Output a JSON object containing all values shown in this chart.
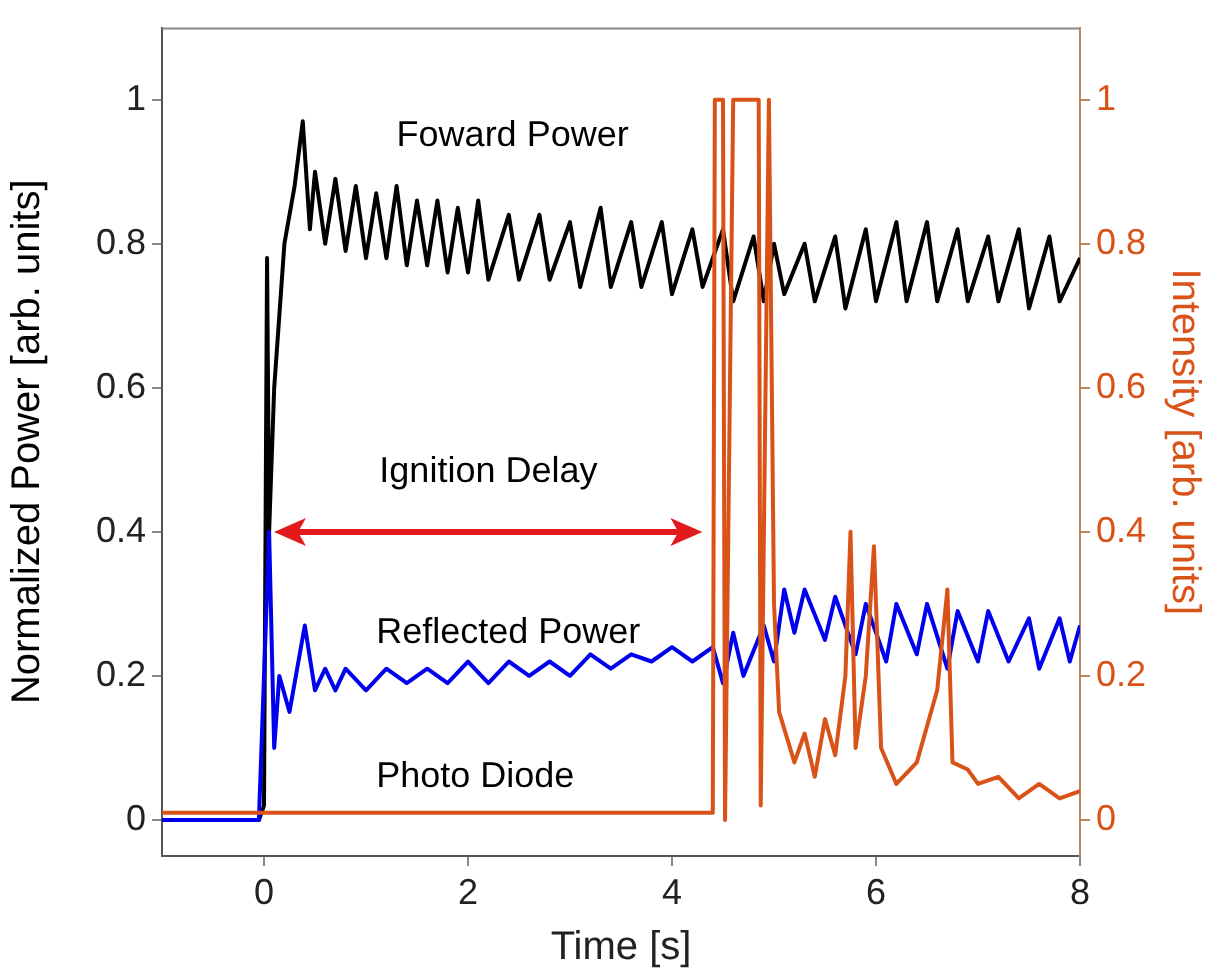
{
  "chart_data": {
    "type": "line",
    "xlabel": "Time [s]",
    "ylabel": "Normalized Power [arb. units]",
    "y2label": "Intensity [arb. units]",
    "xlim": [
      -1,
      8
    ],
    "xticks": [
      0,
      2,
      4,
      6,
      8
    ],
    "ylim": [
      -0.05,
      1.1
    ],
    "yticks": [
      0,
      0.2,
      0.4,
      0.6,
      0.8,
      1
    ],
    "y2lim": [
      -0.05,
      1.1
    ],
    "y2ticks": [
      0,
      0.2,
      0.4,
      0.6,
      0.8,
      1
    ],
    "grid": false,
    "legend": false,
    "marker": "none",
    "line_style": "solid",
    "annotations": [
      "Ignition Delay"
    ],
    "series": [
      {
        "name": "Foward Power",
        "color": "#000000",
        "x": [
          -1,
          -0.05,
          0,
          0.03,
          0.05,
          0.1,
          0.2,
          0.3,
          0.38,
          0.45,
          0.5,
          0.6,
          0.7,
          0.8,
          0.9,
          1.0,
          1.1,
          1.2,
          1.3,
          1.4,
          1.5,
          1.6,
          1.7,
          1.8,
          1.9,
          2.0,
          2.1,
          2.2,
          2.4,
          2.5,
          2.7,
          2.8,
          3.0,
          3.1,
          3.3,
          3.4,
          3.6,
          3.7,
          3.9,
          4.0,
          4.2,
          4.3,
          4.5,
          4.6,
          4.8,
          4.9,
          5.0,
          5.1,
          5.3,
          5.4,
          5.6,
          5.7,
          5.9,
          6.0,
          6.2,
          6.3,
          6.5,
          6.6,
          6.8,
          6.9,
          7.1,
          7.2,
          7.4,
          7.5,
          7.7,
          7.8,
          8.0
        ],
        "values": [
          0,
          0,
          0.02,
          0.78,
          0.4,
          0.6,
          0.8,
          0.88,
          0.97,
          0.82,
          0.9,
          0.8,
          0.89,
          0.79,
          0.88,
          0.78,
          0.87,
          0.78,
          0.88,
          0.77,
          0.86,
          0.77,
          0.86,
          0.76,
          0.85,
          0.76,
          0.86,
          0.75,
          0.84,
          0.75,
          0.84,
          0.75,
          0.83,
          0.74,
          0.85,
          0.74,
          0.83,
          0.74,
          0.83,
          0.73,
          0.82,
          0.74,
          0.82,
          0.72,
          0.81,
          0.72,
          0.8,
          0.73,
          0.8,
          0.72,
          0.81,
          0.71,
          0.82,
          0.72,
          0.83,
          0.72,
          0.83,
          0.72,
          0.82,
          0.72,
          0.81,
          0.72,
          0.82,
          0.71,
          0.81,
          0.72,
          0.78
        ]
      },
      {
        "name": "Reflected Power",
        "color": "#0000ee",
        "x": [
          -1,
          -0.05,
          0.05,
          0.1,
          0.15,
          0.25,
          0.4,
          0.5,
          0.6,
          0.7,
          0.8,
          1.0,
          1.2,
          1.4,
          1.6,
          1.8,
          2.0,
          2.2,
          2.4,
          2.6,
          2.8,
          3.0,
          3.2,
          3.4,
          3.6,
          3.8,
          4.0,
          4.2,
          4.4,
          4.5,
          4.6,
          4.7,
          4.9,
          5.0,
          5.1,
          5.2,
          5.3,
          5.5,
          5.6,
          5.8,
          5.9,
          6.1,
          6.2,
          6.4,
          6.5,
          6.7,
          6.8,
          7.0,
          7.1,
          7.3,
          7.5,
          7.6,
          7.8,
          7.9,
          8.0
        ],
        "values": [
          0,
          0,
          0.4,
          0.1,
          0.2,
          0.15,
          0.27,
          0.18,
          0.21,
          0.18,
          0.21,
          0.18,
          0.21,
          0.19,
          0.21,
          0.19,
          0.22,
          0.19,
          0.22,
          0.2,
          0.22,
          0.2,
          0.23,
          0.21,
          0.23,
          0.22,
          0.24,
          0.22,
          0.24,
          0.19,
          0.26,
          0.2,
          0.27,
          0.22,
          0.32,
          0.26,
          0.32,
          0.25,
          0.31,
          0.23,
          0.3,
          0.22,
          0.3,
          0.23,
          0.3,
          0.21,
          0.29,
          0.22,
          0.29,
          0.22,
          0.28,
          0.21,
          0.28,
          0.22,
          0.27
        ]
      },
      {
        "name": "Photo Diode",
        "color": "#d95319",
        "axis": "y2",
        "x": [
          -1,
          0,
          1,
          2,
          3,
          4,
          4.4,
          4.42,
          4.5,
          4.52,
          4.6,
          4.85,
          4.87,
          4.95,
          5.0,
          5.05,
          5.2,
          5.3,
          5.4,
          5.5,
          5.6,
          5.7,
          5.75,
          5.8,
          5.9,
          5.98,
          6.05,
          6.2,
          6.4,
          6.6,
          6.7,
          6.75,
          6.9,
          7.0,
          7.2,
          7.4,
          7.6,
          7.8,
          8.0
        ],
        "values": [
          0.01,
          0.01,
          0.01,
          0.01,
          0.01,
          0.01,
          0.01,
          1.0,
          1.0,
          0.0,
          1.0,
          1.0,
          0.02,
          1.0,
          0.3,
          0.15,
          0.08,
          0.12,
          0.06,
          0.14,
          0.09,
          0.2,
          0.4,
          0.1,
          0.2,
          0.38,
          0.1,
          0.05,
          0.08,
          0.18,
          0.32,
          0.08,
          0.07,
          0.05,
          0.06,
          0.03,
          0.05,
          0.03,
          0.04
        ]
      }
    ]
  }
}
